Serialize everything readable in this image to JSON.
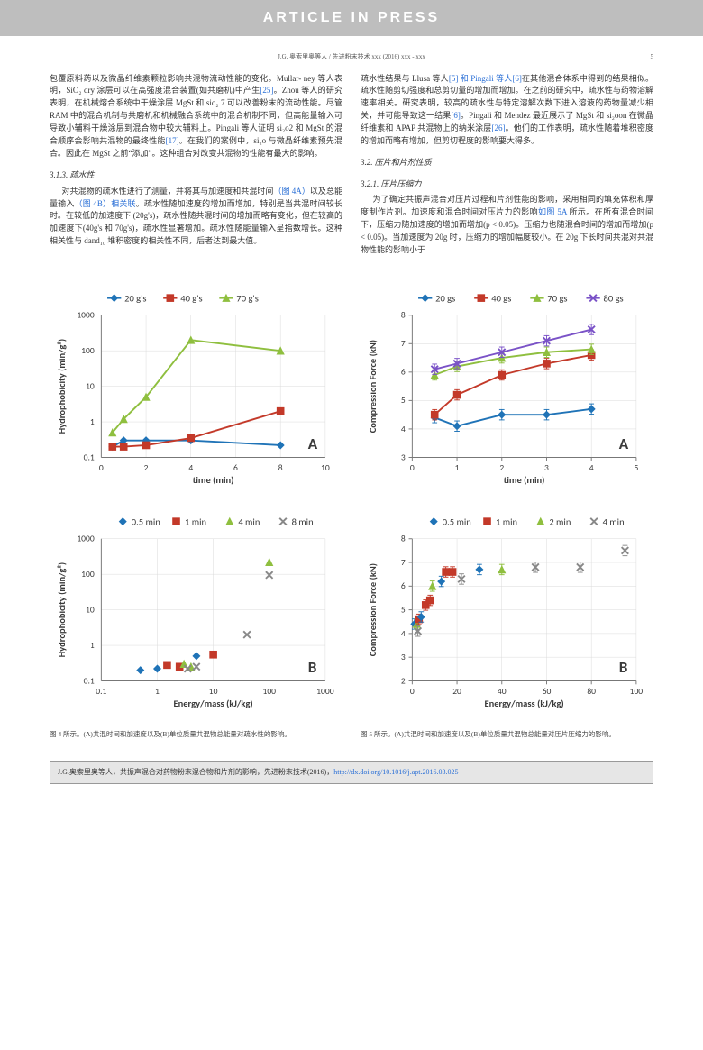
{
  "banner": "ARTICLE IN PRESS",
  "running_head": "J.G. 奥索里奥等人 / 先进粉末技术 xxx (2016) xxx - xxx",
  "page_number": "5",
  "left_col": {
    "para1": "包覆原料药以及微晶纤维素颗粒影响共混物流动性能的变化。Mullar- ney 等人表明，SiO₂ dry 涂层可以在高强度混合装置(如共磨机)中产生",
    "ref25": "[25]",
    "para1b": "。Zhou 等人的研究表明，在机械熔合系统中干燥涂层 MgSt 和 sio₂ 7 可以改善粉末的流动性能。尽管 RAM 中的混合机制与共磨机和机械融合系统中的混合机制不同，但高能量输入可导致小辅料干燥涂层到混合物中较大辅料上。Pingali 等人证明 si₂​o2 和 MgSt 的混合顺序会影响共混物的最终性能",
    "ref17": "[17]",
    "para1c": "。在我们的案例中，si₂​o 与微晶纤维素预先混合。因此在 MgSt 之前“添加”。这种组合对改变共混物的性能有最大的影响。",
    "sec313": "3.1.3. 疏水性",
    "para2a": "对共混物的疏水性进行了测量，并将其与加速度和共混时间",
    "fig4a_link": "（图 4A）",
    "para2b": "以及总能量输入",
    "fig4b_link": "（图 4B）相关联",
    "para2c": "。疏水性随加速度的增加而增加，特别是当共混时间较长时。在较低的加速度下 (20g's)，疏水性随共混时间的增加而略有变化，但在较高的加速度下(40g's 和 70g's)，疏水性显著增加。疏水性随能量输入呈指数增长。这种相关性与 dand₁₀ 堆积密度的相关性不同，后者达到最大值。"
  },
  "right_col": {
    "para1a": "疏水性结果与 Llusa 等人",
    "ref5": "[5] 和 Pingali 等人[6]",
    "para1b": "在其他混合体系中得到的结果相似。疏水性随剪切强度和总剪切量的增加而增加。在之前的研究中，疏水性与药物溶解速率相关。研究表明，较高的疏水性与特定溶解次数下进入溶液的药物量减少相关，并可能导致这一结果",
    "ref6": "[6]",
    "para1c": "。Pingali 和 Mendez 最近展示了 MgSt 和 si₂​oon 在微晶纤维素和 APAP 共混物上的纳米涂层",
    "ref26": "[26]",
    "para1d": "。他们的工作表明，疏水性随着堆积密度的增加而略有增加，但剪切程度的影响要大得多。",
    "sec32": "3.2. 压片和片剂性质",
    "sec321": "3.2.1. 压片压缩力",
    "para2a": "为了确定共振声混合对压片过程和片剂性能的影响，采用相同的填充体积和厚度制作片剂。加速度和混合时间对压片力的影响",
    "fig5a_link": "如图 5A",
    "para2b": " 所示。在所有混合时间下，压缩力随加速度的增加而增加(p < 0.05)。压缩力也随混合时间的增加而增加(p < 0.05)。当加速度为 20g 时，压缩力的增加幅度较小。在 20g 下长时间共混对共混物性能的影响小于"
  },
  "fig4": {
    "caption": "图 4 所示。(A)共混时间和加速度以及(B)单位质量共混物总能量对疏水性的影响。",
    "chartA": {
      "type": "line-log",
      "xlabel": "time (min)",
      "ylabel": "Hydrophobicity (min/g²)",
      "panel_letter": "A",
      "xlim": [
        0,
        10
      ],
      "xticks": [
        0,
        2,
        4,
        6,
        8,
        10
      ],
      "yticks_log": [
        0.1,
        1,
        10,
        100,
        1000
      ],
      "legend": [
        {
          "label": "20 g's",
          "color": "#1f73b7",
          "marker": "diamond"
        },
        {
          "label": "40 g's",
          "color": "#c33929",
          "marker": "square"
        },
        {
          "label": "70 g's",
          "color": "#8fbf3f",
          "marker": "triangle"
        }
      ],
      "series": {
        "20": {
          "color": "#1f73b7",
          "pts": [
            [
              0.5,
              0.2
            ],
            [
              1,
              0.3
            ],
            [
              2,
              0.3
            ],
            [
              4,
              0.3
            ],
            [
              8,
              0.22
            ]
          ]
        },
        "40": {
          "color": "#c33929",
          "pts": [
            [
              0.5,
              0.2
            ],
            [
              1,
              0.2
            ],
            [
              2,
              0.22
            ],
            [
              4,
              0.35
            ],
            [
              8,
              2.0
            ]
          ]
        },
        "70": {
          "color": "#8fbf3f",
          "pts": [
            [
              0.5,
              0.5
            ],
            [
              1,
              1.2
            ],
            [
              2,
              5
            ],
            [
              4,
              200
            ],
            [
              8,
              100
            ]
          ]
        }
      },
      "bg": "#ffffff",
      "grid": "#d9d9d9"
    },
    "chartB": {
      "type": "scatter-loglog",
      "xlabel": "Energy/mass (kJ/kg)",
      "ylabel": "Hydrophobicity (min/g²)",
      "panel_letter": "B",
      "xticks_log": [
        0.1,
        1,
        10,
        100,
        1000
      ],
      "yticks_log": [
        0.1,
        1,
        10,
        100,
        1000
      ],
      "legend": [
        {
          "label": "0.5 min",
          "color": "#1f73b7",
          "marker": "diamond"
        },
        {
          "label": "1 min",
          "color": "#c33929",
          "marker": "square"
        },
        {
          "label": "4 min",
          "color": "#8fbf3f",
          "marker": "triangle"
        },
        {
          "label": "8 min",
          "color": "#888888",
          "marker": "x"
        }
      ],
      "points": [
        {
          "x": 0.5,
          "y": 0.2,
          "c": "#1f73b7",
          "m": "d"
        },
        {
          "x": 1.0,
          "y": 0.22,
          "c": "#1f73b7",
          "m": "d"
        },
        {
          "x": 5,
          "y": 0.5,
          "c": "#1f73b7",
          "m": "d"
        },
        {
          "x": 1.5,
          "y": 0.28,
          "c": "#c33929",
          "m": "s"
        },
        {
          "x": 2.5,
          "y": 0.25,
          "c": "#c33929",
          "m": "s"
        },
        {
          "x": 10,
          "y": 0.55,
          "c": "#c33929",
          "m": "s"
        },
        {
          "x": 3,
          "y": 0.3,
          "c": "#8fbf3f",
          "m": "t"
        },
        {
          "x": 4,
          "y": 0.25,
          "c": "#8fbf3f",
          "m": "t"
        },
        {
          "x": 100,
          "y": 220,
          "c": "#8fbf3f",
          "m": "t"
        },
        {
          "x": 3.5,
          "y": 0.22,
          "c": "#888",
          "m": "x"
        },
        {
          "x": 5,
          "y": 0.25,
          "c": "#888",
          "m": "x"
        },
        {
          "x": 40,
          "y": 2,
          "c": "#888",
          "m": "x"
        },
        {
          "x": 100,
          "y": 95,
          "c": "#888",
          "m": "x"
        }
      ],
      "bg": "#ffffff",
      "grid": "#d9d9d9"
    }
  },
  "fig5": {
    "caption": "图 5 所示。(A)共混时间和加速度以及(B)单位质量共混物总能量对压片压缩力的影响。",
    "chartA": {
      "type": "line",
      "xlabel": "time (min)",
      "ylabel": "Compression Force (kN)",
      "panel_letter": "A",
      "xlim": [
        0,
        5
      ],
      "xticks": [
        0,
        1,
        2,
        3,
        4,
        5
      ],
      "ylim": [
        3,
        8
      ],
      "yticks": [
        3,
        4,
        5,
        6,
        7,
        8
      ],
      "legend": [
        {
          "label": "20 gs",
          "color": "#1f73b7",
          "marker": "diamond"
        },
        {
          "label": "40 gs",
          "color": "#c33929",
          "marker": "square"
        },
        {
          "label": "70 gs",
          "color": "#8fbf3f",
          "marker": "triangle"
        },
        {
          "label": "80 gs",
          "color": "#7a52c7",
          "marker": "x"
        }
      ],
      "series": {
        "20": {
          "color": "#1f73b7",
          "pts": [
            [
              0.5,
              4.4
            ],
            [
              1,
              4.1
            ],
            [
              2,
              4.5
            ],
            [
              3,
              4.5
            ],
            [
              4,
              4.7
            ]
          ]
        },
        "40": {
          "color": "#c33929",
          "pts": [
            [
              0.5,
              4.5
            ],
            [
              1,
              5.2
            ],
            [
              2,
              5.9
            ],
            [
              3,
              6.3
            ],
            [
              4,
              6.6
            ]
          ]
        },
        "70": {
          "color": "#8fbf3f",
          "pts": [
            [
              0.5,
              5.9
            ],
            [
              1,
              6.2
            ],
            [
              2,
              6.5
            ],
            [
              3,
              6.7
            ],
            [
              4,
              6.8
            ]
          ]
        },
        "80": {
          "color": "#7a52c7",
          "pts": [
            [
              0.5,
              6.1
            ],
            [
              1,
              6.3
            ],
            [
              2,
              6.7
            ],
            [
              3,
              7.1
            ],
            [
              4,
              7.5
            ]
          ]
        }
      },
      "bg": "#ffffff",
      "grid": "#d9d9d9",
      "err": 0.15
    },
    "chartB": {
      "type": "scatter",
      "xlabel": "Energy/mass (kJ/kg)",
      "ylabel": "Compression Force (kN)",
      "panel_letter": "B",
      "xlim": [
        0,
        100
      ],
      "xticks": [
        0,
        20,
        40,
        60,
        80,
        100
      ],
      "ylim": [
        2,
        8
      ],
      "yticks": [
        2,
        3,
        4,
        5,
        6,
        7,
        8
      ],
      "legend": [
        {
          "label": "0.5 min",
          "color": "#1f73b7",
          "marker": "diamond"
        },
        {
          "label": "1 min",
          "color": "#c33929",
          "marker": "square"
        },
        {
          "label": "2 min",
          "color": "#8fbf3f",
          "marker": "triangle"
        },
        {
          "label": "4 min",
          "color": "#888888",
          "marker": "x"
        }
      ],
      "points": [
        {
          "x": 1,
          "y": 4.4,
          "c": "#1f73b7",
          "m": "d"
        },
        {
          "x": 2,
          "y": 4.4,
          "c": "#8fbf3f",
          "m": "t"
        },
        {
          "x": 2.5,
          "y": 4.1,
          "c": "#888",
          "m": "x"
        },
        {
          "x": 3,
          "y": 4.6,
          "c": "#c33929",
          "m": "s"
        },
        {
          "x": 4,
          "y": 4.7,
          "c": "#1f73b7",
          "m": "d"
        },
        {
          "x": 6,
          "y": 5.2,
          "c": "#c33929",
          "m": "s"
        },
        {
          "x": 8,
          "y": 5.4,
          "c": "#c33929",
          "m": "s"
        },
        {
          "x": 9,
          "y": 6.0,
          "c": "#8fbf3f",
          "m": "t"
        },
        {
          "x": 13,
          "y": 6.2,
          "c": "#1f73b7",
          "m": "d"
        },
        {
          "x": 15,
          "y": 6.6,
          "c": "#c33929",
          "m": "s"
        },
        {
          "x": 18,
          "y": 6.6,
          "c": "#c33929",
          "m": "s"
        },
        {
          "x": 22,
          "y": 6.3,
          "c": "#888",
          "m": "x"
        },
        {
          "x": 30,
          "y": 6.7,
          "c": "#1f73b7",
          "m": "d"
        },
        {
          "x": 40,
          "y": 6.7,
          "c": "#8fbf3f",
          "m": "t"
        },
        {
          "x": 55,
          "y": 6.8,
          "c": "#888",
          "m": "x"
        },
        {
          "x": 75,
          "y": 6.8,
          "c": "#888",
          "m": "x"
        },
        {
          "x": 95,
          "y": 7.5,
          "c": "#888",
          "m": "x"
        }
      ],
      "bg": "#ffffff",
      "grid": "#d9d9d9",
      "err": 0.15
    }
  },
  "citation_box": {
    "text": "J.G.奥索里奥等人，共振声混合对药物粉末混合物和片剂的影响，先进粉末技术(2016)，",
    "doi": "http://dx.doi.org/10.1016/j.apt.2016.03.025"
  }
}
